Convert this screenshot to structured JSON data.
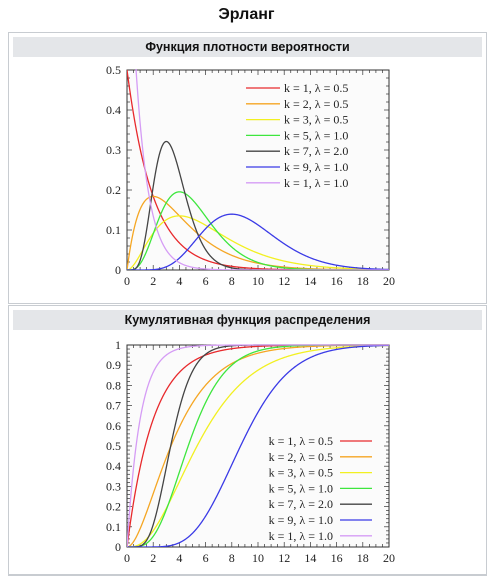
{
  "title": "Эрланг",
  "chart_data": [
    {
      "type": "line",
      "title": "Функция плотности вероятности",
      "function": "pdf",
      "xlim": [
        0,
        20
      ],
      "ylim": [
        0,
        0.5
      ],
      "x_ticks": [
        "0",
        "2",
        "4",
        "6",
        "8",
        "10",
        "12",
        "14",
        "16",
        "18",
        "20"
      ],
      "y_ticks": [
        "0",
        "0.1",
        "0.2",
        "0.3",
        "0.4",
        "0.5"
      ],
      "legend_position": "top-right",
      "series": [
        {
          "name": "k = 1, λ = 0.5",
          "k": 1,
          "lambda": 0.5,
          "color": "#e8292c"
        },
        {
          "name": "k = 2, λ = 0.5",
          "k": 2,
          "lambda": 0.5,
          "color": "#f5a623"
        },
        {
          "name": "k = 3, λ = 0.5",
          "k": 3,
          "lambda": 0.5,
          "color": "#f2f021"
        },
        {
          "name": "k = 5, λ = 1.0",
          "k": 5,
          "lambda": 1.0,
          "color": "#3ee63e"
        },
        {
          "name": "k = 7, λ = 2.0",
          "k": 7,
          "lambda": 2.0,
          "color": "#444444"
        },
        {
          "name": "k = 9, λ = 1.0",
          "k": 9,
          "lambda": 1.0,
          "color": "#3a3ae6"
        },
        {
          "name": "k = 1, λ = 1.0",
          "k": 1,
          "lambda": 1.0,
          "color": "#d59cf5"
        }
      ]
    },
    {
      "type": "line",
      "title": "Кумулятивная функция распределения",
      "function": "cdf",
      "xlim": [
        0,
        20
      ],
      "ylim": [
        0,
        1
      ],
      "x_ticks": [
        "0",
        "2",
        "4",
        "6",
        "8",
        "10",
        "12",
        "14",
        "16",
        "18",
        "20"
      ],
      "y_ticks": [
        "0",
        "0.1",
        "0.2",
        "0.3",
        "0.4",
        "0.5",
        "0.6",
        "0.7",
        "0.8",
        "0.9",
        "1"
      ],
      "legend_position": "center-right",
      "series": [
        {
          "name": "k = 1, λ = 0.5",
          "k": 1,
          "lambda": 0.5,
          "color": "#e8292c"
        },
        {
          "name": "k = 2, λ = 0.5",
          "k": 2,
          "lambda": 0.5,
          "color": "#f5a623"
        },
        {
          "name": "k = 3, λ = 0.5",
          "k": 3,
          "lambda": 0.5,
          "color": "#f2f021"
        },
        {
          "name": "k = 5, λ = 1.0",
          "k": 5,
          "lambda": 1.0,
          "color": "#3ee63e"
        },
        {
          "name": "k = 7, λ = 2.0",
          "k": 7,
          "lambda": 2.0,
          "color": "#444444"
        },
        {
          "name": "k = 9, λ = 1.0",
          "k": 9,
          "lambda": 1.0,
          "color": "#3a3ae6"
        },
        {
          "name": "k = 1, λ = 1.0",
          "k": 1,
          "lambda": 1.0,
          "color": "#d59cf5"
        }
      ]
    }
  ]
}
